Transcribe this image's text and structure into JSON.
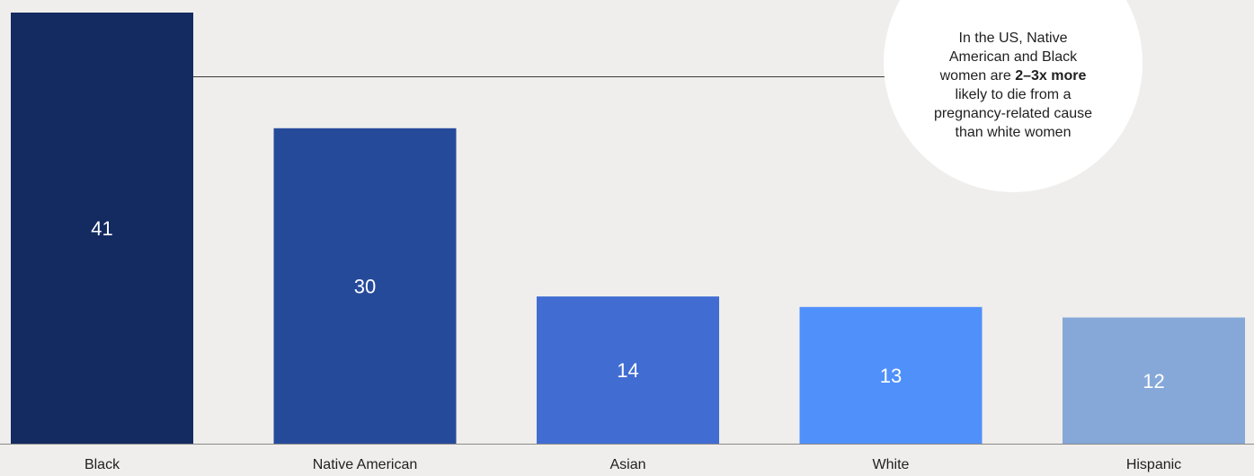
{
  "chart_data": {
    "type": "bar",
    "categories": [
      "Black",
      "Native American",
      "Asian",
      "White",
      "Hispanic"
    ],
    "values": [
      41,
      30,
      14,
      13,
      12
    ],
    "colors": [
      "#142b61",
      "#264a9a",
      "#416dd3",
      "#5090fb",
      "#85a8d8"
    ],
    "title": "",
    "xlabel": "",
    "ylabel": "",
    "ylim": [
      0,
      41
    ],
    "grid": false,
    "annotation": {
      "text_before": "In the US, Native American and Black women are ",
      "text_bold": "2–3x more",
      "text_after": " likely to die from a pregnancy-related cause than white women"
    }
  },
  "colors": {
    "background": "#efeeec",
    "callout_bg": "#ffffff",
    "text": "#1f1f1f",
    "axis": "#8a8a8a",
    "leader_line": "#3a3a3a"
  }
}
